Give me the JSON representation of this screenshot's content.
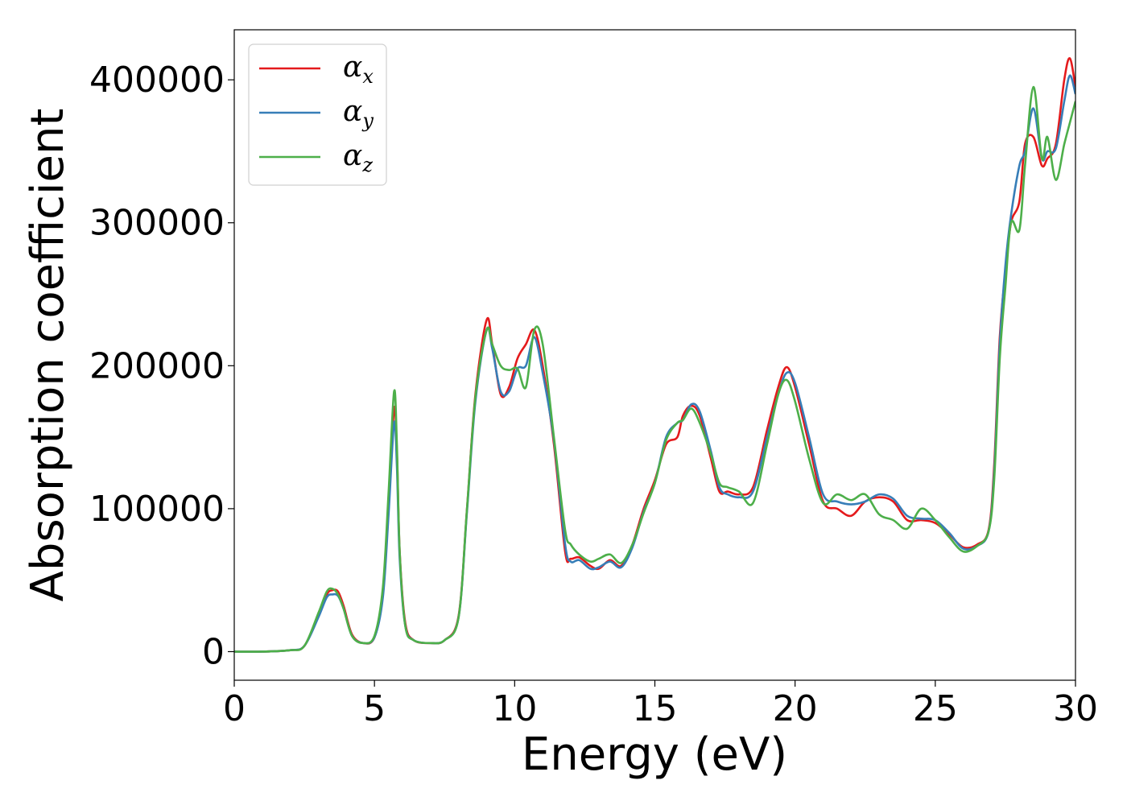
{
  "chart_data": {
    "type": "line",
    "xlabel": "Energy (eV)",
    "ylabel": "Absorption coefficient",
    "xlim": [
      0,
      30
    ],
    "ylim": [
      -20000,
      435000
    ],
    "xticks": [
      0,
      5,
      10,
      15,
      20,
      25,
      30
    ],
    "xtick_labels": [
      "0",
      "5",
      "10",
      "15",
      "20",
      "25",
      "30"
    ],
    "yticks": [
      0,
      100000,
      200000,
      300000,
      400000
    ],
    "ytick_labels": [
      "0",
      "100000",
      "200000",
      "300000",
      "400000"
    ],
    "grid": false,
    "legend_position": "top-left",
    "series": [
      {
        "name": "α_x",
        "label_main": "α",
        "label_sub": "x",
        "color": "#e41a1c",
        "x": [
          0,
          1,
          2,
          2.5,
          3,
          3.3,
          3.5,
          3.7,
          3.9,
          4.2,
          4.6,
          5.0,
          5.3,
          5.5,
          5.7,
          5.8,
          5.9,
          6.1,
          6.4,
          7.0,
          7.5,
          8.0,
          8.3,
          8.6,
          9.0,
          9.2,
          9.5,
          9.8,
          10.1,
          10.4,
          10.7,
          11.0,
          11.4,
          11.8,
          12.0,
          12.3,
          12.7,
          13.0,
          13.4,
          13.8,
          14.2,
          14.6,
          15.0,
          15.4,
          15.8,
          16.0,
          16.3,
          16.6,
          17.0,
          17.3,
          17.6,
          18.0,
          18.5,
          19.0,
          19.4,
          19.7,
          20.0,
          20.5,
          21.0,
          21.5,
          22.0,
          22.5,
          23.0,
          23.5,
          24.0,
          24.5,
          25.0,
          25.5,
          26.0,
          26.5,
          26.9,
          27.1,
          27.3,
          27.5,
          27.7,
          28.0,
          28.2,
          28.5,
          28.8,
          29.0,
          29.3,
          29.6,
          29.8,
          30.0
        ],
        "y": [
          0,
          0,
          1000,
          4000,
          25000,
          40000,
          43000,
          42000,
          32000,
          12000,
          6000,
          10000,
          40000,
          100000,
          170000,
          140000,
          70000,
          20000,
          8000,
          6000,
          8000,
          25000,
          100000,
          180000,
          232000,
          215000,
          180000,
          185000,
          205000,
          215000,
          225000,
          200000,
          145000,
          70000,
          65000,
          66000,
          60000,
          58000,
          64000,
          60000,
          75000,
          100000,
          120000,
          145000,
          150000,
          165000,
          172000,
          165000,
          135000,
          112000,
          112000,
          110000,
          115000,
          155000,
          185000,
          199000,
          185000,
          145000,
          105000,
          100000,
          95000,
          105000,
          108000,
          105000,
          92000,
          92000,
          90000,
          82000,
          73000,
          75000,
          85000,
          130000,
          220000,
          265000,
          300000,
          315000,
          355000,
          360000,
          340000,
          345000,
          355000,
          400000,
          415000,
          395000
        ]
      },
      {
        "name": "α_y",
        "label_main": "α",
        "label_sub": "y",
        "color": "#377eb8",
        "x": [
          0,
          1,
          2,
          2.5,
          3,
          3.3,
          3.5,
          3.7,
          3.9,
          4.2,
          4.6,
          5.0,
          5.3,
          5.5,
          5.7,
          5.8,
          5.9,
          6.1,
          6.4,
          7.0,
          7.5,
          8.0,
          8.3,
          8.6,
          9.0,
          9.2,
          9.5,
          9.8,
          10.1,
          10.4,
          10.7,
          11.0,
          11.4,
          11.8,
          12.0,
          12.3,
          12.7,
          13.0,
          13.4,
          13.8,
          14.2,
          14.6,
          15.0,
          15.4,
          15.8,
          16.0,
          16.3,
          16.6,
          17.0,
          17.3,
          17.6,
          18.0,
          18.5,
          19.0,
          19.4,
          19.7,
          20.0,
          20.5,
          21.0,
          21.5,
          22.0,
          22.5,
          23.0,
          23.5,
          24.0,
          24.5,
          25.0,
          25.5,
          26.0,
          26.5,
          26.9,
          27.1,
          27.3,
          27.5,
          27.7,
          28.0,
          28.2,
          28.5,
          28.8,
          29.0,
          29.3,
          29.6,
          29.8,
          30.0
        ],
        "y": [
          0,
          0,
          1000,
          4000,
          24000,
          38000,
          40000,
          39000,
          30000,
          11000,
          6000,
          10000,
          38000,
          95000,
          160000,
          130000,
          65000,
          18000,
          8000,
          6000,
          8000,
          24000,
          98000,
          175000,
          225000,
          212000,
          182000,
          182000,
          198000,
          200000,
          220000,
          195000,
          148000,
          75000,
          63000,
          64000,
          58000,
          59000,
          63000,
          59000,
          73000,
          98000,
          118000,
          150000,
          160000,
          162000,
          173000,
          168000,
          140000,
          115000,
          110000,
          108000,
          112000,
          150000,
          180000,
          195000,
          188000,
          150000,
          110000,
          105000,
          103000,
          105000,
          110000,
          107000,
          95000,
          93000,
          92000,
          83000,
          72000,
          74000,
          84000,
          125000,
          215000,
          270000,
          305000,
          340000,
          350000,
          380000,
          345000,
          350000,
          352000,
          385000,
          403000,
          390000
        ]
      },
      {
        "name": "α_z",
        "label_main": "α",
        "label_sub": "z",
        "color": "#4daf4a",
        "x": [
          0,
          1,
          2,
          2.5,
          3,
          3.3,
          3.5,
          3.7,
          3.9,
          4.2,
          4.6,
          5.0,
          5.3,
          5.5,
          5.7,
          5.8,
          5.9,
          6.1,
          6.4,
          7.0,
          7.5,
          8.0,
          8.3,
          8.6,
          9.0,
          9.2,
          9.5,
          9.8,
          10.1,
          10.4,
          10.7,
          11.0,
          11.4,
          11.8,
          12.0,
          12.3,
          12.7,
          13.0,
          13.4,
          13.8,
          14.2,
          14.6,
          15.0,
          15.4,
          15.8,
          16.0,
          16.3,
          16.6,
          17.0,
          17.3,
          17.6,
          18.0,
          18.5,
          19.0,
          19.4,
          19.7,
          20.0,
          20.5,
          21.0,
          21.5,
          22.0,
          22.5,
          23.0,
          23.5,
          24.0,
          24.5,
          25.0,
          25.5,
          26.0,
          26.5,
          26.9,
          27.1,
          27.3,
          27.5,
          27.7,
          28.0,
          28.2,
          28.5,
          28.8,
          29.0,
          29.3,
          29.6,
          29.8,
          30.0
        ],
        "y": [
          0,
          0,
          1000,
          4000,
          27000,
          42000,
          44000,
          40000,
          30000,
          11000,
          6000,
          11000,
          45000,
          110000,
          182000,
          145000,
          70000,
          18000,
          8000,
          6000,
          8000,
          24000,
          100000,
          178000,
          225000,
          215000,
          200000,
          197000,
          198000,
          185000,
          225000,
          215000,
          150000,
          85000,
          75000,
          68000,
          63000,
          65000,
          68000,
          62000,
          75000,
          97000,
          118000,
          148000,
          160000,
          162000,
          170000,
          160000,
          138000,
          118000,
          115000,
          112000,
          104000,
          145000,
          180000,
          190000,
          175000,
          135000,
          104000,
          110000,
          106000,
          110000,
          96000,
          92000,
          86000,
          100000,
          92000,
          80000,
          70000,
          74000,
          84000,
          120000,
          205000,
          255000,
          300000,
          295000,
          340000,
          395000,
          345000,
          360000,
          330000,
          355000,
          370000,
          385000
        ]
      }
    ]
  }
}
